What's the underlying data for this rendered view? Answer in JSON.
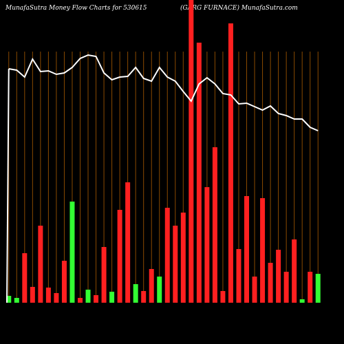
{
  "chart_data": {
    "type": "bar",
    "title": "MunafaSutra  Money Flow  Charts for 530615",
    "subtitle": "(GARG FURNACE) MunafaSutra.com",
    "values": [
      10,
      7,
      72,
      23,
      112,
      22,
      14,
      61,
      147,
      7,
      19,
      11,
      81,
      16,
      135,
      175,
      27,
      17,
      49,
      38,
      138,
      112,
      131,
      440,
      378,
      168,
      226,
      17,
      406,
      78,
      155,
      38,
      152,
      58,
      77,
      45,
      92,
      5,
      45,
      42
    ],
    "colors": [
      "#33ff33",
      "#33ff33",
      "#ff2020",
      "#ff2020",
      "#ff2020",
      "#ff2020",
      "#ff2020",
      "#ff2020",
      "#33ff33",
      "#ff2020",
      "#33ff33",
      "#ff2020",
      "#ff2020",
      "#33ff33",
      "#ff2020",
      "#ff2020",
      "#33ff33",
      "#ff2020",
      "#ff2020",
      "#33ff33",
      "#ff2020",
      "#ff2020",
      "#ff2020",
      "#ff2020",
      "#ff2020",
      "#ff2020",
      "#ff2020",
      "#ff2020",
      "#ff2020",
      "#ff2020",
      "#ff2020",
      "#ff2020",
      "#ff2020",
      "#ff2020",
      "#ff2020",
      "#ff2020",
      "#ff2020",
      "#33ff33",
      "#ff2020",
      "#33ff33"
    ],
    "line_values": [
      340,
      338,
      328,
      354,
      336,
      337,
      332,
      334,
      342,
      355,
      360,
      358,
      334,
      324,
      328,
      329,
      342,
      326,
      322,
      342,
      328,
      322,
      307,
      293,
      318,
      327,
      318,
      304,
      302,
      289,
      290,
      285,
      280,
      286,
      275,
      272,
      267,
      267,
      255,
      250
    ],
    "line_color": "#ffffff",
    "ylim": [
      0,
      440
    ]
  }
}
